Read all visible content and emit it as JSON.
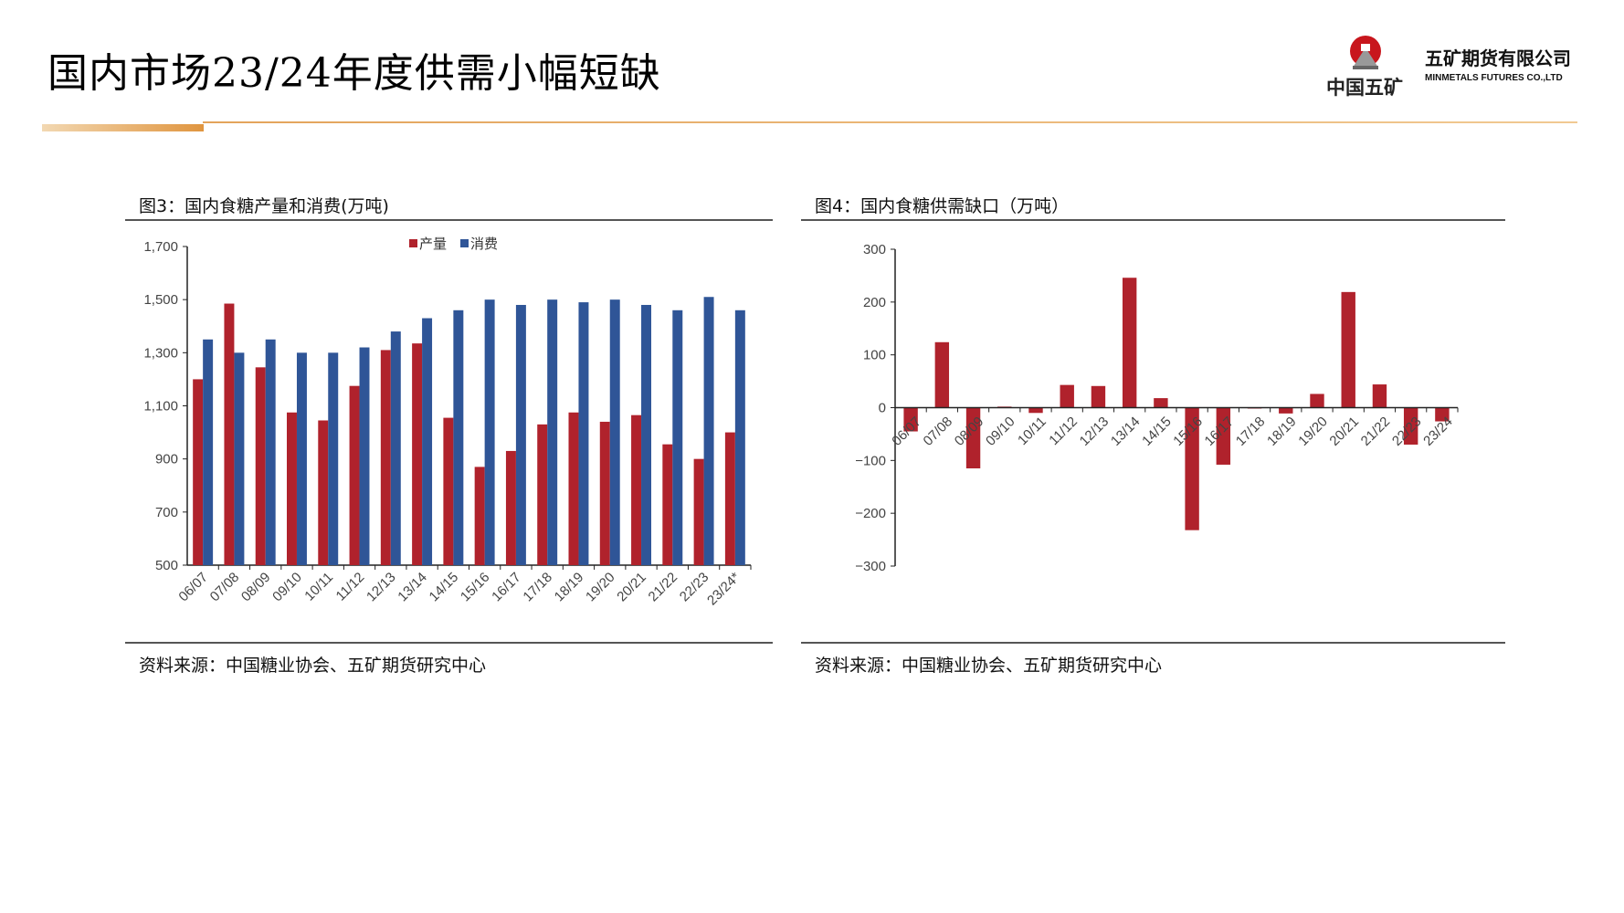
{
  "header": {
    "title": "国内市场23/24年度供需小幅短缺",
    "logo_text": "中国五矿",
    "logo_seal_text": "MINMETALS",
    "company_cn": "五矿期货有限公司",
    "company_en": "MINMETALS FUTURES CO.,LTD"
  },
  "colors": {
    "production": "#b0222c",
    "consumption": "#2f5597",
    "accent": "#e0953f"
  },
  "figures": [
    {
      "caption": "图3：国内食糖产量和消费(万吨)",
      "source": "资料来源：中国糖业协会、五矿期货研究中心"
    },
    {
      "caption": "图4：国内食糖供需缺口（万吨）",
      "source": "资料来源：中国糖业协会、五矿期货研究中心"
    }
  ],
  "chart_data": [
    {
      "type": "bar",
      "title": "图3：国内食糖产量和消费(万吨)",
      "categories": [
        "06/07",
        "07/08",
        "08/09",
        "09/10",
        "10/11",
        "11/12",
        "12/13",
        "13/14",
        "14/15",
        "15/16",
        "16/17",
        "17/18",
        "18/19",
        "19/20",
        "20/21",
        "21/22",
        "22/23",
        "23/24*"
      ],
      "series": [
        {
          "name": "产量",
          "values": [
            1200,
            1485,
            1245,
            1075,
            1045,
            1175,
            1310,
            1335,
            1055,
            870,
            930,
            1030,
            1075,
            1040,
            1065,
            955,
            900,
            1000
          ]
        },
        {
          "name": "消费",
          "values": [
            1350,
            1300,
            1350,
            1300,
            1300,
            1320,
            1380,
            1430,
            1460,
            1500,
            1480,
            1500,
            1490,
            1500,
            1480,
            1460,
            1510,
            1460
          ]
        }
      ],
      "yticks": [
        "1,700",
        "1,500",
        "1,300",
        "1,100",
        "900",
        "700",
        "500"
      ],
      "ylim": [
        500,
        1700
      ],
      "legend": "top-center"
    },
    {
      "type": "bar",
      "title": "图4：国内食糖供需缺口（万吨）",
      "categories": [
        "06/07",
        "07/08",
        "08/09",
        "09/10",
        "10/11",
        "11/12",
        "12/13",
        "13/14",
        "14/15",
        "15/16",
        "16/17",
        "17/18",
        "18/19",
        "19/20",
        "20/21",
        "21/22",
        "22/23",
        "23/24"
      ],
      "values": [
        -45,
        124,
        -115,
        2,
        -10,
        43,
        41,
        246,
        18,
        -232,
        -108,
        0,
        -11,
        26,
        219,
        44,
        -70,
        -26
      ],
      "yticks": [
        "300",
        "200",
        "100",
        "0",
        "-100",
        "-200",
        "-300"
      ],
      "ylim": [
        -300,
        300
      ]
    }
  ]
}
